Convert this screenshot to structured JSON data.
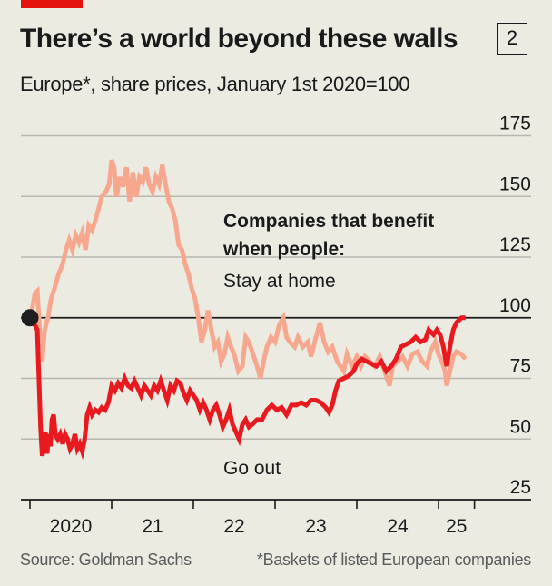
{
  "header": {
    "title": "There’s a world beyond these walls",
    "chart_number": "2",
    "subtitle": "Europe*, share prices, January 1st 2020=100"
  },
  "footer": {
    "source": "Source: Goldman Sachs",
    "note": "*Baskets of listed European companies"
  },
  "colors": {
    "brand_red": "#e3120b",
    "go_out": "#e8191f",
    "stay_home": "#f7a78d",
    "background": "#ebebe1",
    "gridline": "#b7b7b0",
    "baseline": "#1a1a1a"
  },
  "chart_data": {
    "type": "line",
    "title": "There’s a world beyond these walls",
    "subtitle": "Europe*, share prices, January 1st 2020=100",
    "xlabel": "",
    "ylabel": "",
    "x_unit": "year",
    "xlim": [
      2019.89,
      2026.2
    ],
    "ylim": [
      25,
      175
    ],
    "yticks": [
      25,
      50,
      75,
      100,
      125,
      150,
      175
    ],
    "ytick_labels": [
      "25",
      "50",
      "75",
      "100",
      "125",
      "150",
      "175"
    ],
    "reference_line": 100,
    "xticks": [
      2020,
      2021,
      2022,
      2023,
      2024,
      2025,
      2025.44
    ],
    "xtick_labels": [
      {
        "label": "2020",
        "at": 2020.5
      },
      {
        "label": "21",
        "at": 2021.5
      },
      {
        "label": "22",
        "at": 2022.5
      },
      {
        "label": "23",
        "at": 2023.5
      },
      {
        "label": "24",
        "at": 2024.5
      },
      {
        "label": "25",
        "at": 2025.22
      }
    ],
    "grid": true,
    "annotations": {
      "heading_line1": "Companies that benefit",
      "heading_line2": "when people:",
      "stay_home_label": "Stay at home",
      "go_out_label": "Go out"
    },
    "start_marker": {
      "x": 2020.0,
      "y": 100
    },
    "series": [
      {
        "name": "Stay at home",
        "points": [
          [
            2020.0,
            100
          ],
          [
            2020.03,
            104
          ],
          [
            2020.06,
            110
          ],
          [
            2020.09,
            111
          ],
          [
            2020.11,
            100
          ],
          [
            2020.13,
            88
          ],
          [
            2020.15,
            82
          ],
          [
            2020.18,
            95
          ],
          [
            2020.22,
            100
          ],
          [
            2020.26,
            108
          ],
          [
            2020.3,
            112
          ],
          [
            2020.35,
            118
          ],
          [
            2020.4,
            122
          ],
          [
            2020.44,
            128
          ],
          [
            2020.48,
            132
          ],
          [
            2020.52,
            128
          ],
          [
            2020.56,
            134
          ],
          [
            2020.6,
            131
          ],
          [
            2020.64,
            135
          ],
          [
            2020.68,
            128
          ],
          [
            2020.72,
            138
          ],
          [
            2020.76,
            136
          ],
          [
            2020.8,
            140
          ],
          [
            2020.84,
            145
          ],
          [
            2020.88,
            150
          ],
          [
            2020.93,
            152
          ],
          [
            2020.97,
            155
          ],
          [
            2021.0,
            165
          ],
          [
            2021.03,
            162
          ],
          [
            2021.06,
            150
          ],
          [
            2021.1,
            158
          ],
          [
            2021.14,
            154
          ],
          [
            2021.18,
            162
          ],
          [
            2021.22,
            148
          ],
          [
            2021.26,
            160
          ],
          [
            2021.3,
            150
          ],
          [
            2021.34,
            158
          ],
          [
            2021.38,
            156
          ],
          [
            2021.42,
            162
          ],
          [
            2021.46,
            155
          ],
          [
            2021.5,
            152
          ],
          [
            2021.54,
            158
          ],
          [
            2021.58,
            155
          ],
          [
            2021.62,
            163
          ],
          [
            2021.66,
            155
          ],
          [
            2021.7,
            148
          ],
          [
            2021.74,
            145
          ],
          [
            2021.78,
            140
          ],
          [
            2021.82,
            130
          ],
          [
            2021.86,
            128
          ],
          [
            2021.9,
            122
          ],
          [
            2021.94,
            118
          ],
          [
            2021.98,
            112
          ],
          [
            2022.02,
            108
          ],
          [
            2022.06,
            100
          ],
          [
            2022.1,
            90
          ],
          [
            2022.14,
            95
          ],
          [
            2022.18,
            103
          ],
          [
            2022.22,
            95
          ],
          [
            2022.26,
            88
          ],
          [
            2022.3,
            90
          ],
          [
            2022.34,
            82
          ],
          [
            2022.38,
            85
          ],
          [
            2022.42,
            92
          ],
          [
            2022.46,
            88
          ],
          [
            2022.5,
            85
          ],
          [
            2022.55,
            78
          ],
          [
            2022.6,
            80
          ],
          [
            2022.64,
            92
          ],
          [
            2022.68,
            90
          ],
          [
            2022.72,
            86
          ],
          [
            2022.78,
            80
          ],
          [
            2022.82,
            75
          ],
          [
            2022.86,
            82
          ],
          [
            2022.9,
            88
          ],
          [
            2022.95,
            92
          ],
          [
            2023.0,
            90
          ],
          [
            2023.05,
            97
          ],
          [
            2023.1,
            100
          ],
          [
            2023.14,
            92
          ],
          [
            2023.18,
            90
          ],
          [
            2023.24,
            88
          ],
          [
            2023.28,
            92
          ],
          [
            2023.34,
            88
          ],
          [
            2023.4,
            90
          ],
          [
            2023.44,
            84
          ],
          [
            2023.5,
            92
          ],
          [
            2023.55,
            98
          ],
          [
            2023.6,
            90
          ],
          [
            2023.65,
            86
          ],
          [
            2023.7,
            88
          ],
          [
            2023.76,
            82
          ],
          [
            2023.8,
            80
          ],
          [
            2023.84,
            78
          ],
          [
            2023.88,
            85
          ],
          [
            2023.94,
            80
          ],
          [
            2024.0,
            84
          ],
          [
            2024.05,
            80
          ],
          [
            2024.1,
            84
          ],
          [
            2024.16,
            82
          ],
          [
            2024.22,
            80
          ],
          [
            2024.28,
            84
          ],
          [
            2024.34,
            78
          ],
          [
            2024.4,
            72
          ],
          [
            2024.44,
            80
          ],
          [
            2024.5,
            82
          ],
          [
            2024.56,
            84
          ],
          [
            2024.62,
            80
          ],
          [
            2024.68,
            85
          ],
          [
            2024.74,
            86
          ],
          [
            2024.8,
            82
          ],
          [
            2024.86,
            80
          ],
          [
            2024.9,
            86
          ],
          [
            2024.96,
            90
          ],
          [
            2025.0,
            85
          ],
          [
            2025.04,
            82
          ],
          [
            2025.08,
            78
          ],
          [
            2025.1,
            72
          ],
          [
            2025.14,
            78
          ],
          [
            2025.18,
            84
          ],
          [
            2025.22,
            86
          ],
          [
            2025.28,
            85
          ],
          [
            2025.33,
            83
          ]
        ]
      },
      {
        "name": "Go out",
        "points": [
          [
            2020.0,
            100
          ],
          [
            2020.03,
            98
          ],
          [
            2020.06,
            97
          ],
          [
            2020.09,
            95
          ],
          [
            2020.11,
            75
          ],
          [
            2020.13,
            55
          ],
          [
            2020.15,
            43
          ],
          [
            2020.17,
            48
          ],
          [
            2020.19,
            53
          ],
          [
            2020.21,
            44
          ],
          [
            2020.23,
            52
          ],
          [
            2020.25,
            47
          ],
          [
            2020.27,
            58
          ],
          [
            2020.29,
            60
          ],
          [
            2020.31,
            52
          ],
          [
            2020.34,
            50
          ],
          [
            2020.37,
            52
          ],
          [
            2020.4,
            48
          ],
          [
            2020.43,
            52
          ],
          [
            2020.46,
            50
          ],
          [
            2020.49,
            46
          ],
          [
            2020.52,
            48
          ],
          [
            2020.55,
            52
          ],
          [
            2020.58,
            46
          ],
          [
            2020.61,
            48
          ],
          [
            2020.64,
            45
          ],
          [
            2020.67,
            50
          ],
          [
            2020.7,
            60
          ],
          [
            2020.73,
            63
          ],
          [
            2020.76,
            60
          ],
          [
            2020.8,
            62
          ],
          [
            2020.84,
            61
          ],
          [
            2020.88,
            63
          ],
          [
            2020.92,
            62
          ],
          [
            2020.96,
            65
          ],
          [
            2021.0,
            72
          ],
          [
            2021.04,
            70
          ],
          [
            2021.08,
            73
          ],
          [
            2021.12,
            71
          ],
          [
            2021.16,
            75
          ],
          [
            2021.2,
            72
          ],
          [
            2021.24,
            71
          ],
          [
            2021.28,
            74
          ],
          [
            2021.32,
            71
          ],
          [
            2021.36,
            68
          ],
          [
            2021.4,
            72
          ],
          [
            2021.44,
            70
          ],
          [
            2021.48,
            68
          ],
          [
            2021.52,
            72
          ],
          [
            2021.56,
            70
          ],
          [
            2021.6,
            74
          ],
          [
            2021.64,
            70
          ],
          [
            2021.68,
            66
          ],
          [
            2021.72,
            72
          ],
          [
            2021.76,
            70
          ],
          [
            2021.8,
            74
          ],
          [
            2021.84,
            73
          ],
          [
            2021.88,
            69
          ],
          [
            2021.92,
            66
          ],
          [
            2021.96,
            70
          ],
          [
            2022.0,
            68
          ],
          [
            2022.04,
            66
          ],
          [
            2022.08,
            62
          ],
          [
            2022.12,
            65
          ],
          [
            2022.16,
            62
          ],
          [
            2022.2,
            58
          ],
          [
            2022.24,
            62
          ],
          [
            2022.28,
            64
          ],
          [
            2022.32,
            60
          ],
          [
            2022.36,
            55
          ],
          [
            2022.4,
            58
          ],
          [
            2022.44,
            62
          ],
          [
            2022.48,
            56
          ],
          [
            2022.52,
            53
          ],
          [
            2022.56,
            50
          ],
          [
            2022.6,
            56
          ],
          [
            2022.64,
            58
          ],
          [
            2022.68,
            55
          ],
          [
            2022.72,
            56
          ],
          [
            2022.78,
            58
          ],
          [
            2022.84,
            58
          ],
          [
            2022.9,
            62
          ],
          [
            2022.96,
            64
          ],
          [
            2023.02,
            62
          ],
          [
            2023.08,
            63
          ],
          [
            2023.14,
            60
          ],
          [
            2023.2,
            64
          ],
          [
            2023.26,
            64
          ],
          [
            2023.32,
            65
          ],
          [
            2023.38,
            64
          ],
          [
            2023.44,
            66
          ],
          [
            2023.5,
            66
          ],
          [
            2023.56,
            65
          ],
          [
            2023.62,
            63
          ],
          [
            2023.66,
            61
          ],
          [
            2023.7,
            64
          ],
          [
            2023.74,
            70
          ],
          [
            2023.78,
            74
          ],
          [
            2023.84,
            75
          ],
          [
            2023.9,
            76
          ],
          [
            2023.96,
            78
          ],
          [
            2024.0,
            81
          ],
          [
            2024.06,
            83
          ],
          [
            2024.12,
            82
          ],
          [
            2024.18,
            81
          ],
          [
            2024.24,
            80
          ],
          [
            2024.3,
            82
          ],
          [
            2024.36,
            78
          ],
          [
            2024.42,
            80
          ],
          [
            2024.48,
            83
          ],
          [
            2024.54,
            88
          ],
          [
            2024.6,
            89
          ],
          [
            2024.66,
            90
          ],
          [
            2024.72,
            92
          ],
          [
            2024.78,
            90
          ],
          [
            2024.84,
            91
          ],
          [
            2024.88,
            95
          ],
          [
            2024.94,
            93
          ],
          [
            2024.98,
            95
          ],
          [
            2025.02,
            93
          ],
          [
            2025.06,
            88
          ],
          [
            2025.1,
            80
          ],
          [
            2025.14,
            88
          ],
          [
            2025.18,
            95
          ],
          [
            2025.22,
            98
          ],
          [
            2025.28,
            100
          ],
          [
            2025.33,
            100
          ]
        ]
      }
    ]
  }
}
